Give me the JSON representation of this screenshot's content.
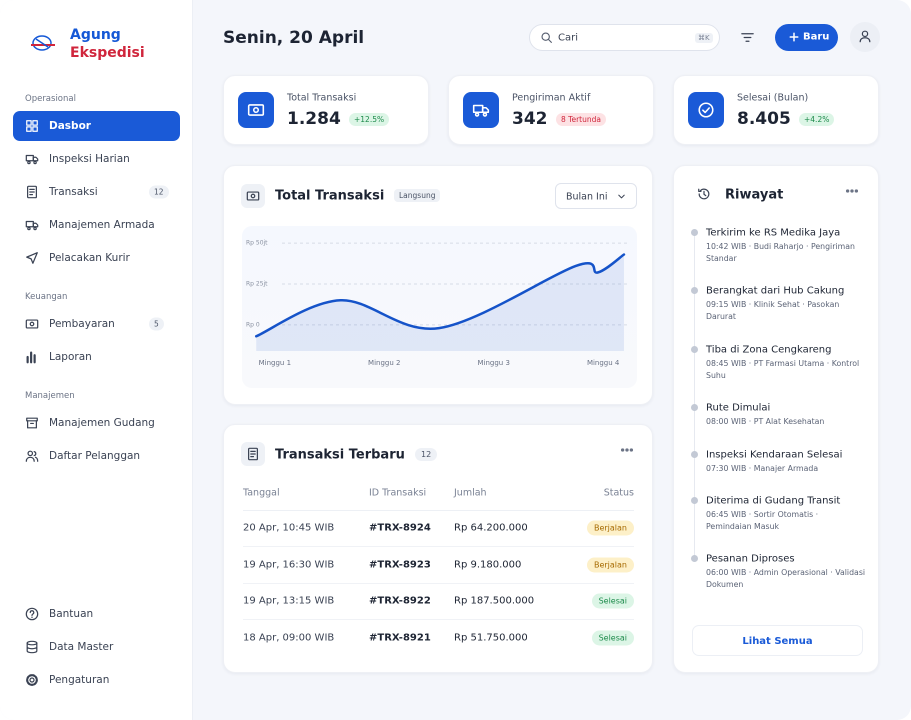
{
  "sidebar": {
    "brand_line1": "Agung",
    "brand_line2": "Ekspedisi",
    "groups": [
      {
        "title": "Operasional",
        "items": [
          {
            "label": "Dasbor"
          },
          {
            "label": "Inspeksi Harian"
          },
          {
            "label": "Transaksi",
            "badge": 12
          },
          {
            "label": "Manajemen Armada"
          },
          {
            "label": "Pelacakan Kurir"
          }
        ]
      },
      {
        "title": "Keuangan",
        "items": [
          {
            "label": "Pembayaran",
            "badge": 5
          },
          {
            "label": "Laporan"
          }
        ]
      },
      {
        "title": "Manajemen",
        "items": [
          {
            "label": "Manajemen Gudang"
          },
          {
            "label": "Daftar Pelanggan"
          }
        ]
      }
    ],
    "footer": [
      "Bantuan",
      "Data Master",
      "Pengaturan"
    ]
  },
  "header": {
    "date": "Senin, 20 April",
    "search_placeholder": "Cari",
    "shortcut": "⌘K",
    "new_button": "Baru"
  },
  "stats": [
    {
      "label": "Total Transaksi",
      "value": "1.284",
      "badge": "+12.5%",
      "badge_color": "#1c8a4a",
      "badge_bg": "#dcf5e6"
    },
    {
      "label": "Pengiriman Aktif",
      "value": 342,
      "badge": "8 Tertunda",
      "badge_color": "#d0263c",
      "badge_bg": "#fde2e4"
    },
    {
      "label": "Selesai (Bulan)",
      "value": "8.405",
      "badge": "+4.2%",
      "badge_color": "#1c8a4a",
      "badge_bg": "#dcf5e6"
    }
  ],
  "chart_card": {
    "title": "Total Transaksi",
    "tag": "Langsung",
    "period": "Bulan Ini"
  },
  "chart_data": {
    "type": "line",
    "x": [
      0.83,
      1.6,
      2.5,
      3.75,
      3.95,
      4.19
    ],
    "values": [
      -7,
      15,
      -2,
      36,
      32,
      43
    ],
    "color": "#1553c9",
    "xlim": [
      0.7,
      4.3
    ],
    "xticks": [
      {
        "value": 1,
        "label": "Minggu 1"
      },
      {
        "value": 2,
        "label": "Minggu 2"
      },
      {
        "value": 3,
        "label": "Minggu 3"
      },
      {
        "value": 4,
        "label": "Minggu 4"
      }
    ],
    "ylim": [
      -16,
      58
    ],
    "yticks": [
      {
        "value": 0,
        "label": "Rp 0"
      },
      {
        "value": 25,
        "label": "Rp 25jt"
      },
      {
        "value": 50,
        "label": "Rp 50jt"
      }
    ],
    "grid": true
  },
  "transactions": {
    "title": "Transaksi Terbaru",
    "count": 12,
    "columns": [
      "Tanggal",
      "ID Transaksi",
      "Jumlah",
      "Status"
    ],
    "rows": [
      {
        "date": "20 Apr, 10:45 WIB",
        "id": "#TRX-8924",
        "amount": "Rp 64.200.000",
        "status": "Berjalan",
        "status_color": "#a66a00",
        "status_bg": "#fdf0c8"
      },
      {
        "date": "19 Apr, 16:30 WIB",
        "id": "#TRX-8923",
        "amount": "Rp 9.180.000",
        "status": "Berjalan",
        "status_color": "#a66a00",
        "status_bg": "#fdf0c8"
      },
      {
        "date": "19 Apr, 13:15 WIB",
        "id": "#TRX-8922",
        "amount": "Rp 187.500.000",
        "status": "Selesai",
        "status_color": "#1c8a4a",
        "status_bg": "#dcf5e6"
      },
      {
        "date": "18 Apr, 09:00 WIB",
        "id": "#TRX-8921",
        "amount": "Rp 51.750.000",
        "status": "Selesai",
        "status_color": "#1c8a4a",
        "status_bg": "#dcf5e6"
      }
    ]
  },
  "history": {
    "title": "Riwayat",
    "button": "Lihat Semua",
    "items": [
      {
        "title": "Terkirim ke RS Medika Jaya",
        "meta": "10:42 WIB · Budi Raharjo · Pengiriman Standar"
      },
      {
        "title": "Berangkat dari Hub Cakung",
        "meta": "09:15 WIB · Klinik Sehat · Pasokan Darurat"
      },
      {
        "title": "Tiba di Zona Cengkareng",
        "meta": "08:45 WIB · PT Farmasi Utama · Kontrol Suhu"
      },
      {
        "title": "Rute Dimulai",
        "meta": "08:00 WIB · PT Alat Kesehatan"
      },
      {
        "title": "Inspeksi Kendaraan Selesai",
        "meta": "07:30 WIB · Manajer Armada"
      },
      {
        "title": "Diterima di Gudang Transit",
        "meta": "06:45 WIB · Sortir Otomatis · Pemindaian Masuk"
      },
      {
        "title": "Pesanan Diproses",
        "meta": "06:00 WIB · Admin Operasional · Validasi Dokumen"
      }
    ]
  }
}
